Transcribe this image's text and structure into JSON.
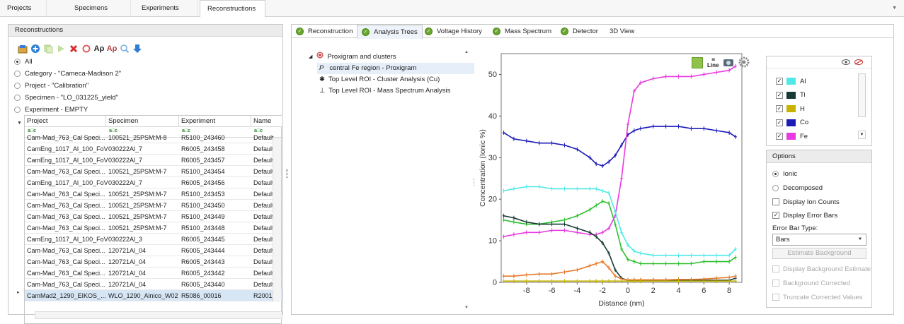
{
  "top_tabs": [
    "Projects",
    "Specimens",
    "Experiments",
    "Reconstructions"
  ],
  "left_panel": {
    "title": "Reconstructions",
    "filters": [
      {
        "label": "All",
        "selected": true
      },
      {
        "label": "Category - \"Cameca-Madison 2\"",
        "selected": false
      },
      {
        "label": "Project - \"Calibration\"",
        "selected": false
      },
      {
        "label": "Specimen - \"LO_031225_yield\"",
        "selected": false
      },
      {
        "label": "Experiment - EMPTY",
        "selected": false
      }
    ],
    "columns": [
      "Project",
      "Specimen",
      "Experiment",
      "Name"
    ],
    "filter_glyph": "a□c",
    "rows": [
      [
        "Cam-Mad_763_Cal Speci...",
        "100521_25PSM:M-8",
        "R5100_243460",
        "Default"
      ],
      [
        "CamEng_1017_Al_100_FoV",
        "030222Al_7",
        "R6005_243458",
        "Default"
      ],
      [
        "CamEng_1017_Al_100_FoV",
        "030222Al_7",
        "R6005_243457",
        "Default"
      ],
      [
        "Cam-Mad_763_Cal Speci...",
        "100521_25PSM:M-7",
        "R5100_243454",
        "Default"
      ],
      [
        "CamEng_1017_Al_100_FoV",
        "030222Al_7",
        "R6005_243456",
        "Default"
      ],
      [
        "Cam-Mad_763_Cal Speci...",
        "100521_25PSM:M-7",
        "R5100_243453",
        "Default"
      ],
      [
        "Cam-Mad_763_Cal Speci...",
        "100521_25PSM:M-7",
        "R5100_243450",
        "Default"
      ],
      [
        "Cam-Mad_763_Cal Speci...",
        "100521_25PSM:M-7",
        "R5100_243449",
        "Default"
      ],
      [
        "Cam-Mad_763_Cal Speci...",
        "100521_25PSM:M-7",
        "R5100_243448",
        "Default"
      ],
      [
        "CamEng_1017_Al_100_FoV",
        "030222Al_3",
        "R6005_243445",
        "Default"
      ],
      [
        "Cam-Mad_763_Cal Speci...",
        "120721Al_04",
        "R6005_243444",
        "Default"
      ],
      [
        "Cam-Mad_763_Cal Speci...",
        "120721Al_04",
        "R6005_243443",
        "Default"
      ],
      [
        "Cam-Mad_763_Cal Speci...",
        "120721Al_04",
        "R6005_243442",
        "Default"
      ],
      [
        "Cam-Mad_763_Cal Speci...",
        "120721Al_04",
        "R6005_243440",
        "Default"
      ],
      [
        "CamMad2_1290_EIKOS_...",
        "WLO_1290_Alnico_W02",
        "R5086_00016",
        "R2001_"
      ]
    ]
  },
  "right_tabs": [
    "Reconstruction",
    "Analysis Trees",
    "Voltage History",
    "Mass Spectrum",
    "Detector",
    "3D View"
  ],
  "tree": {
    "root": "Proxigram and clusters",
    "children": [
      {
        "label": "central Fe region - Proxigram",
        "glyph": "P"
      },
      {
        "label": "Top Level ROI - Cluster Analysis (Cu)",
        "glyph": "✱"
      },
      {
        "label": "Top Level ROI - Mass Spectrum Analysis",
        "glyph": "⊥"
      }
    ]
  },
  "plot_toolbar": {
    "line_label": "Line"
  },
  "legend": {
    "items": [
      {
        "label": "Al",
        "color": "#4fe8e8",
        "checked": true
      },
      {
        "label": "Ti",
        "color": "#173a35",
        "checked": true
      },
      {
        "label": "H",
        "color": "#c8b400",
        "checked": true
      },
      {
        "label": "Co",
        "color": "#1b1bb8",
        "checked": true
      },
      {
        "label": "Fe",
        "color": "#e83ae0",
        "checked": true
      }
    ]
  },
  "options": {
    "title": "Options",
    "ionic": "Ionic",
    "decomposed": "Decomposed",
    "display_ion_counts": "Display Ion Counts",
    "display_error_bars": "Display Error Bars",
    "error_bar_type_label": "Error Bar Type:",
    "error_bar_type_value": "Bars",
    "estimate_background": "Estimate Background",
    "display_background_estimate": "Display Background Estimate",
    "background_corrected": "Background Corrected",
    "truncate_corrected_values": "Truncate Corrected Values"
  },
  "chart_data": {
    "type": "line",
    "xlabel": "Distance (nm)",
    "ylabel": "Concentration (Ionic %)",
    "xlim": [
      -10,
      9
    ],
    "ylim": [
      0,
      55
    ],
    "xticks": [
      -8,
      -6,
      -4,
      -2,
      0,
      2,
      4,
      6,
      8
    ],
    "yticks": [
      0,
      10,
      20,
      30,
      40,
      50
    ],
    "x": [
      -9.8,
      -9.0,
      -8.0,
      -7.0,
      -6.0,
      -5.0,
      -4.0,
      -3.0,
      -2.5,
      -2.0,
      -1.5,
      -1.0,
      -0.5,
      0.0,
      0.5,
      1.0,
      2.0,
      3.0,
      4.0,
      5.0,
      6.0,
      7.0,
      8.0,
      8.5
    ],
    "series": [
      {
        "name": "Co",
        "color": "#1b1bb8",
        "values": [
          36,
          34.5,
          34,
          33.5,
          33.5,
          33,
          32,
          30,
          28.5,
          28,
          29,
          30.5,
          33,
          35.5,
          36.5,
          37,
          37.5,
          37.5,
          37.5,
          37,
          37,
          36.5,
          36,
          35
        ]
      },
      {
        "name": "Fe",
        "color": "#e83ae0",
        "values": [
          11,
          11.5,
          12,
          12,
          12.5,
          12.5,
          12,
          11.5,
          11.5,
          12,
          13,
          16,
          25,
          38,
          46,
          48,
          49,
          49.5,
          49.5,
          49.5,
          50,
          50.5,
          51,
          52
        ]
      },
      {
        "name": "Al",
        "color": "#4fe8e8",
        "values": [
          22,
          22.5,
          23,
          23,
          22.5,
          22.5,
          22.5,
          22.5,
          22.5,
          22,
          21.5,
          17,
          12,
          9,
          7.5,
          7,
          6.5,
          6.5,
          6.5,
          6.5,
          6.5,
          6.5,
          6.5,
          8
        ]
      },
      {
        "name": "green",
        "color": "#2fbf2f",
        "values": [
          15,
          14.5,
          14,
          14,
          14.5,
          15,
          16,
          17.5,
          18.5,
          19.5,
          19,
          14,
          8,
          5.5,
          5,
          4.5,
          4.5,
          4.5,
          4.5,
          4.5,
          5,
          5,
          5,
          6
        ]
      },
      {
        "name": "Ti",
        "color": "#173a35",
        "values": [
          16,
          15.5,
          14.5,
          14,
          14,
          14,
          13,
          12,
          11,
          9.5,
          7,
          3,
          1,
          0.5,
          0.5,
          0.5,
          0.5,
          0.5,
          0.5,
          0.5,
          0.5,
          0.5,
          0.5,
          1
        ]
      },
      {
        "name": "orange",
        "color": "#e8792a",
        "values": [
          1.5,
          1.5,
          1.8,
          2,
          2,
          2.5,
          3,
          4,
          4.5,
          5,
          3.5,
          1.5,
          0.8,
          0.6,
          0.6,
          0.6,
          0.6,
          0.6,
          0.7,
          0.7,
          0.8,
          1,
          1.2,
          1.5
        ]
      },
      {
        "name": "H",
        "color": "#c8b400",
        "values": [
          0.3,
          0.3,
          0.3,
          0.3,
          0.3,
          0.3,
          0.3,
          0.3,
          0.3,
          0.3,
          0.3,
          0.3,
          0.3,
          0.3,
          0.3,
          0.3,
          0.3,
          0.3,
          0.3,
          0.3,
          0.3,
          0.3,
          0.3,
          0.3
        ]
      }
    ]
  }
}
